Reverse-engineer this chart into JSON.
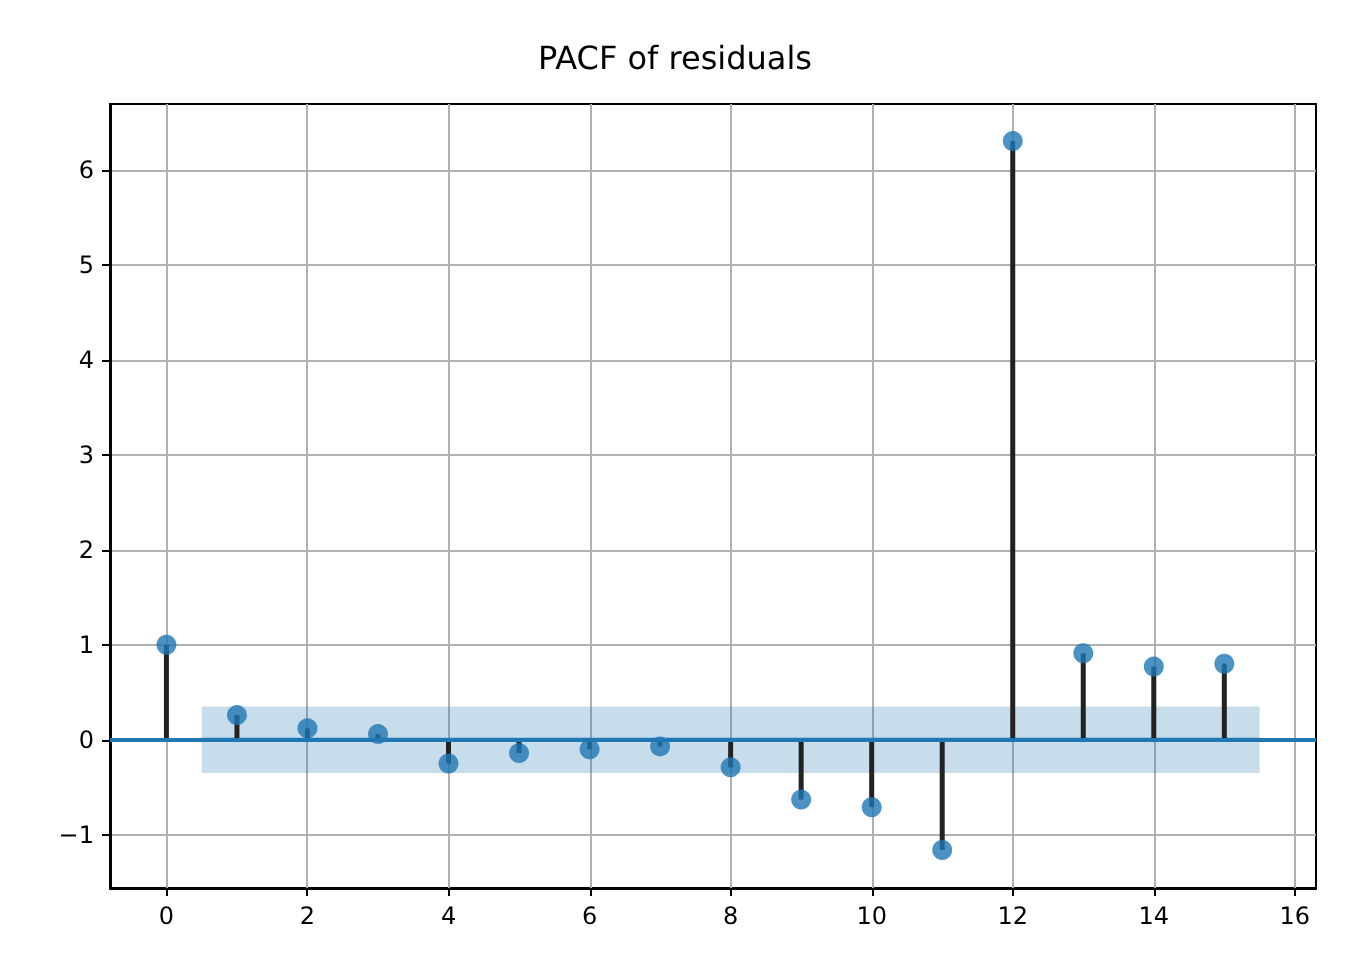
{
  "chart_data": {
    "type": "lollipop",
    "title": "PACF of residuals",
    "x": [
      0,
      1,
      2,
      3,
      4,
      5,
      6,
      7,
      8,
      9,
      10,
      11,
      12,
      13,
      14,
      15
    ],
    "series": [
      {
        "color": "#1f77b4",
        "values": [
          1,
          0.26,
          0.12,
          0.06,
          -0.25,
          -0.14,
          -0.1,
          -0.07,
          -0.29,
          -0.63,
          -0.71,
          -1.16,
          6.3,
          0.91,
          0.77,
          0.8
        ]
      },
      {
        "type": "line",
        "marker": "none",
        "color": "#1f77b4",
        "x": [
          0.5,
          15.5
        ],
        "values": [
          0,
          0
        ],
        "lower": [
          -0.35,
          -0.35
        ],
        "upper": [
          0.35,
          0.35
        ]
      }
    ],
    "ref_lines": [
      {
        "axis": "y",
        "value": 0,
        "color": "#1f77b4"
      }
    ],
    "xlim": [
      -0.8,
      16.3
    ],
    "xticks": [
      0,
      2,
      4,
      6,
      8,
      10,
      12,
      14,
      16
    ],
    "ylim": [
      -1.56,
      6.69
    ],
    "yticks": [
      -1,
      0,
      1,
      2,
      3,
      4,
      5,
      6
    ],
    "grid": true,
    "marker": "circle"
  }
}
